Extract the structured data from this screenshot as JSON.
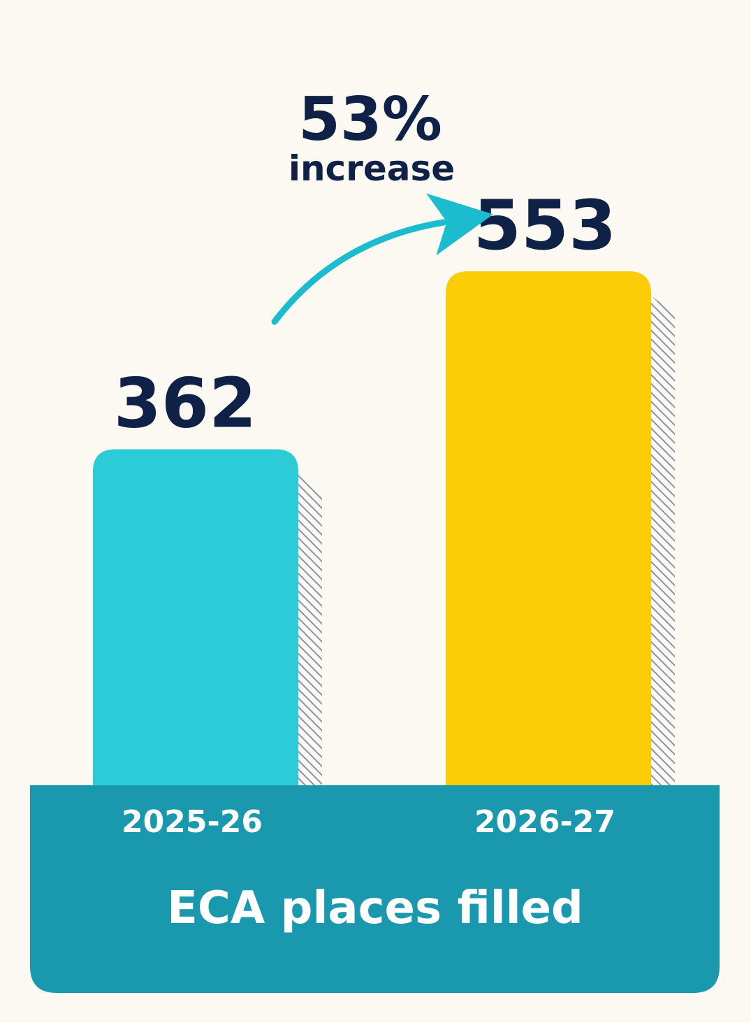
{
  "chart_data": {
    "type": "bar",
    "title": "",
    "xlabel": "ECA places filled",
    "ylabel": "",
    "categories": [
      "2025-26",
      "2026-27"
    ],
    "values": [
      362,
      553
    ],
    "value_labels": [
      "362",
      "553"
    ],
    "bar_colors": [
      "#2ccbd8",
      "#fccd06"
    ],
    "annotation": {
      "percent": "53%",
      "text": "increase",
      "arrow_color": "#1cbccf"
    },
    "grid": false,
    "legend": "none"
  },
  "colors": {
    "background": "#fbf9f2",
    "label_text": "#0f2146",
    "base_band": "#1a98ae",
    "base_text": "#ffffff",
    "hatch": "#8a94a8"
  }
}
